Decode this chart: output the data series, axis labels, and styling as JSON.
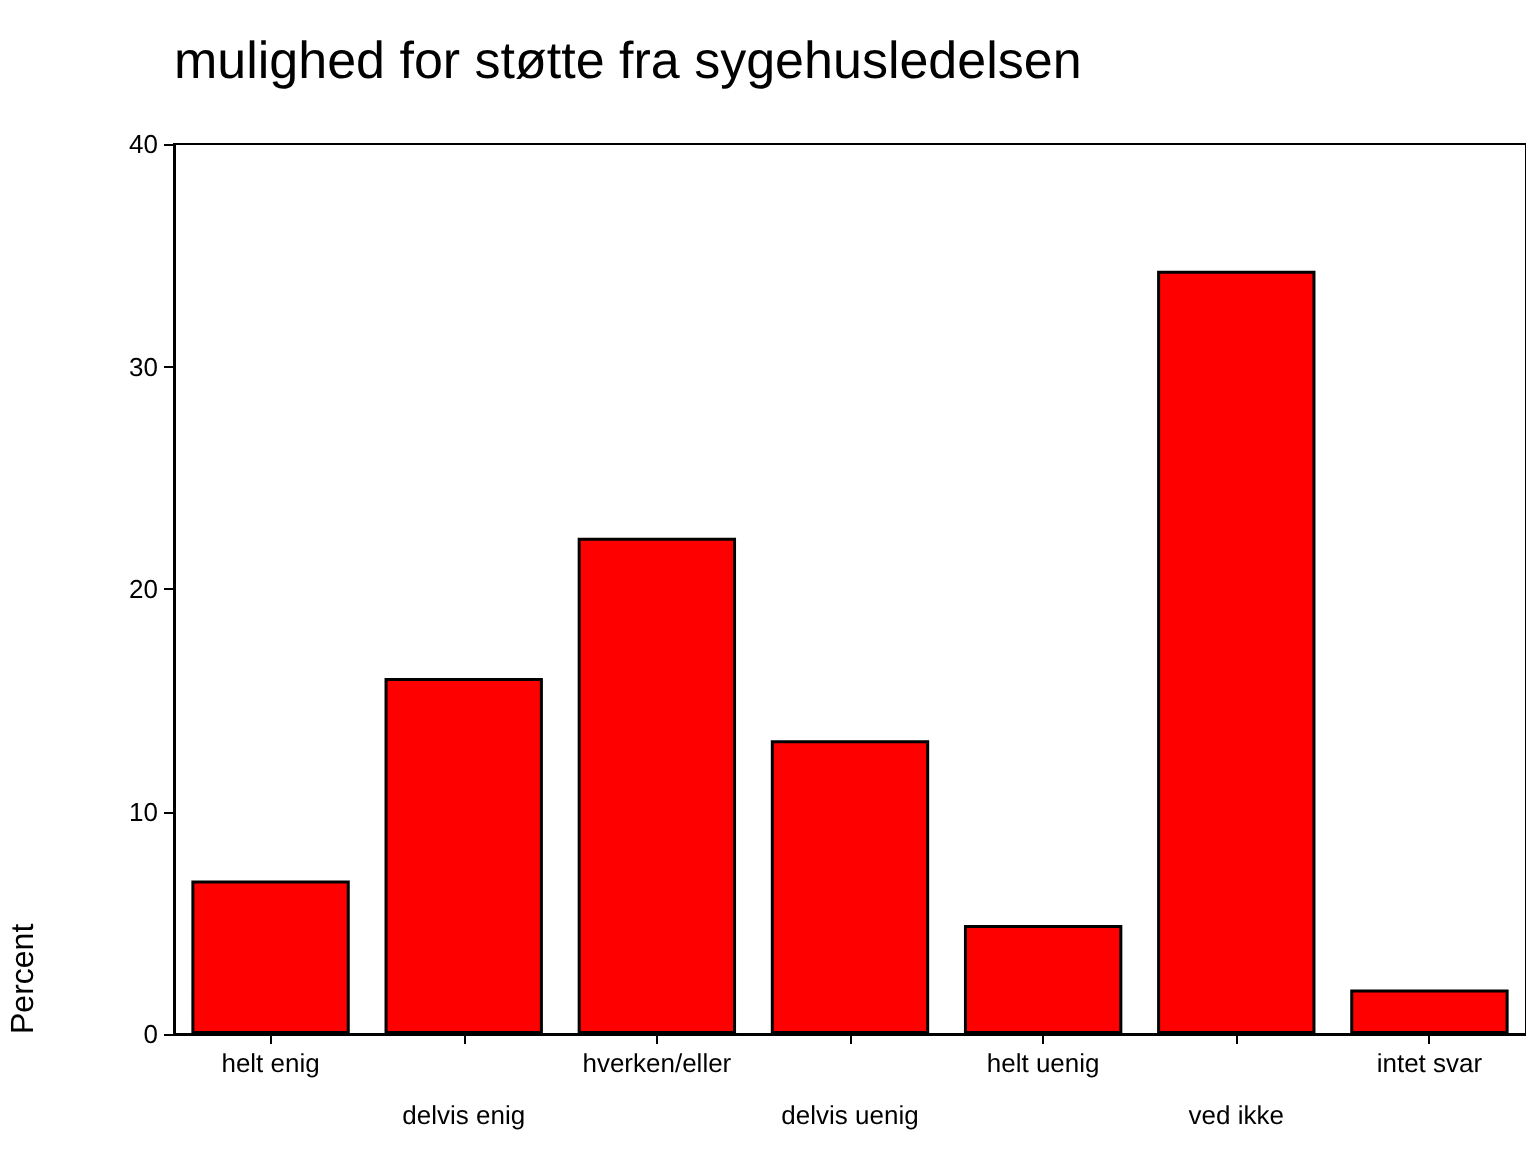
{
  "chart_data": {
    "type": "bar",
    "title": "mulighed for støtte fra sygehusledelsen",
    "ylabel": "Percent",
    "categories": [
      "helt enig",
      "delvis enig",
      "hverken/eller",
      "delvis uenig",
      "helt uenig",
      "ved ikke",
      "intet svar"
    ],
    "values": [
      6.9,
      16.0,
      22.3,
      13.2,
      4.9,
      34.3,
      2.0
    ],
    "color": "#ff0000",
    "ylim": [
      0,
      40
    ],
    "yticks": [
      0,
      10,
      20,
      30,
      40
    ],
    "grid": false
  }
}
